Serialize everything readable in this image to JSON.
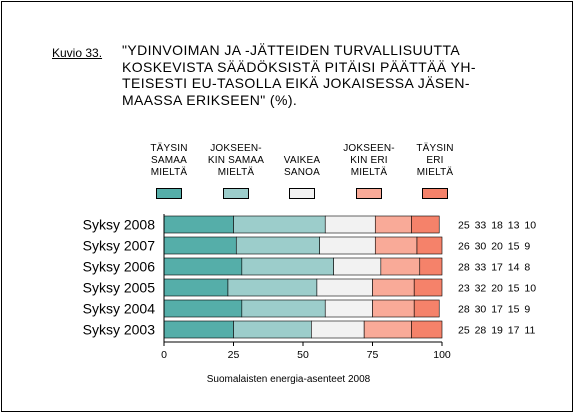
{
  "figure": {
    "label": "Kuvio 33.",
    "title_lines": [
      "\"YDINVOIMAN JA -JÄTTEIDEN TURVALLISUUTTA",
      "KOSKEVISTA SÄÄDÖKSISTÄ PITÄISI PÄÄTTÄÄ YH-",
      "TEISESTI EU-TASOLLA EIKÄ JOKAISESSA JÄSEN-",
      "MAASSA ERIKSEEN\" (%)."
    ],
    "source": "Suomalaisten energia-asenteet 2008"
  },
  "legend": [
    {
      "lines": [
        "TÄYSIN",
        "SAMAA",
        "MIELTÄ"
      ],
      "color": "#55aea9"
    },
    {
      "lines": [
        "JOKSEEN-",
        "KIN SAMAA",
        "MIELTÄ"
      ],
      "color": "#9ccdcb"
    },
    {
      "lines": [
        "VAIKEA",
        "SANOA"
      ],
      "color": "#f2f2f2"
    },
    {
      "lines": [
        "JOKSEEN-",
        "KIN ERI",
        "MIELTÄ"
      ],
      "color": "#f9aa98"
    },
    {
      "lines": [
        "TÄYSIN",
        "ERI",
        "MIELTÄ"
      ],
      "color": "#f5826a"
    }
  ],
  "chart_data": {
    "type": "bar",
    "orientation": "horizontal",
    "stacked": true,
    "categories": [
      "Syksy 2008",
      "Syksy 2007",
      "Syksy 2006",
      "Syksy 2005",
      "Syksy 2004",
      "Syksy 2003"
    ],
    "series": [
      {
        "name": "TÄYSIN SAMAA MIELTÄ",
        "values": [
          25,
          26,
          28,
          23,
          28,
          25
        ],
        "color": "#55aea9"
      },
      {
        "name": "JOKSEENKIN SAMAA MIELTÄ",
        "values": [
          33,
          30,
          33,
          32,
          30,
          28
        ],
        "color": "#9ccdcb"
      },
      {
        "name": "VAIKEA SANOA",
        "values": [
          18,
          20,
          17,
          20,
          17,
          19
        ],
        "color": "#f2f2f2"
      },
      {
        "name": "JOKSEENKIN ERI MIELTÄ",
        "values": [
          13,
          15,
          14,
          15,
          15,
          17
        ],
        "color": "#f9aa98"
      },
      {
        "name": "TÄYSIN ERI MIELTÄ",
        "values": [
          10,
          9,
          8,
          10,
          9,
          11
        ],
        "color": "#f5826a"
      }
    ],
    "value_labels": [
      "25 33 18 13 10",
      "26 30 20 15 9",
      "28 33 17 14 8",
      "23 32 20 15 10",
      "28 30 17 15 9",
      "25 28 19 17 11"
    ],
    "xticks": [
      "0",
      "25",
      "50",
      "75",
      "100"
    ],
    "xlim": [
      0,
      100
    ],
    "grid": false,
    "legend_position": "top"
  }
}
